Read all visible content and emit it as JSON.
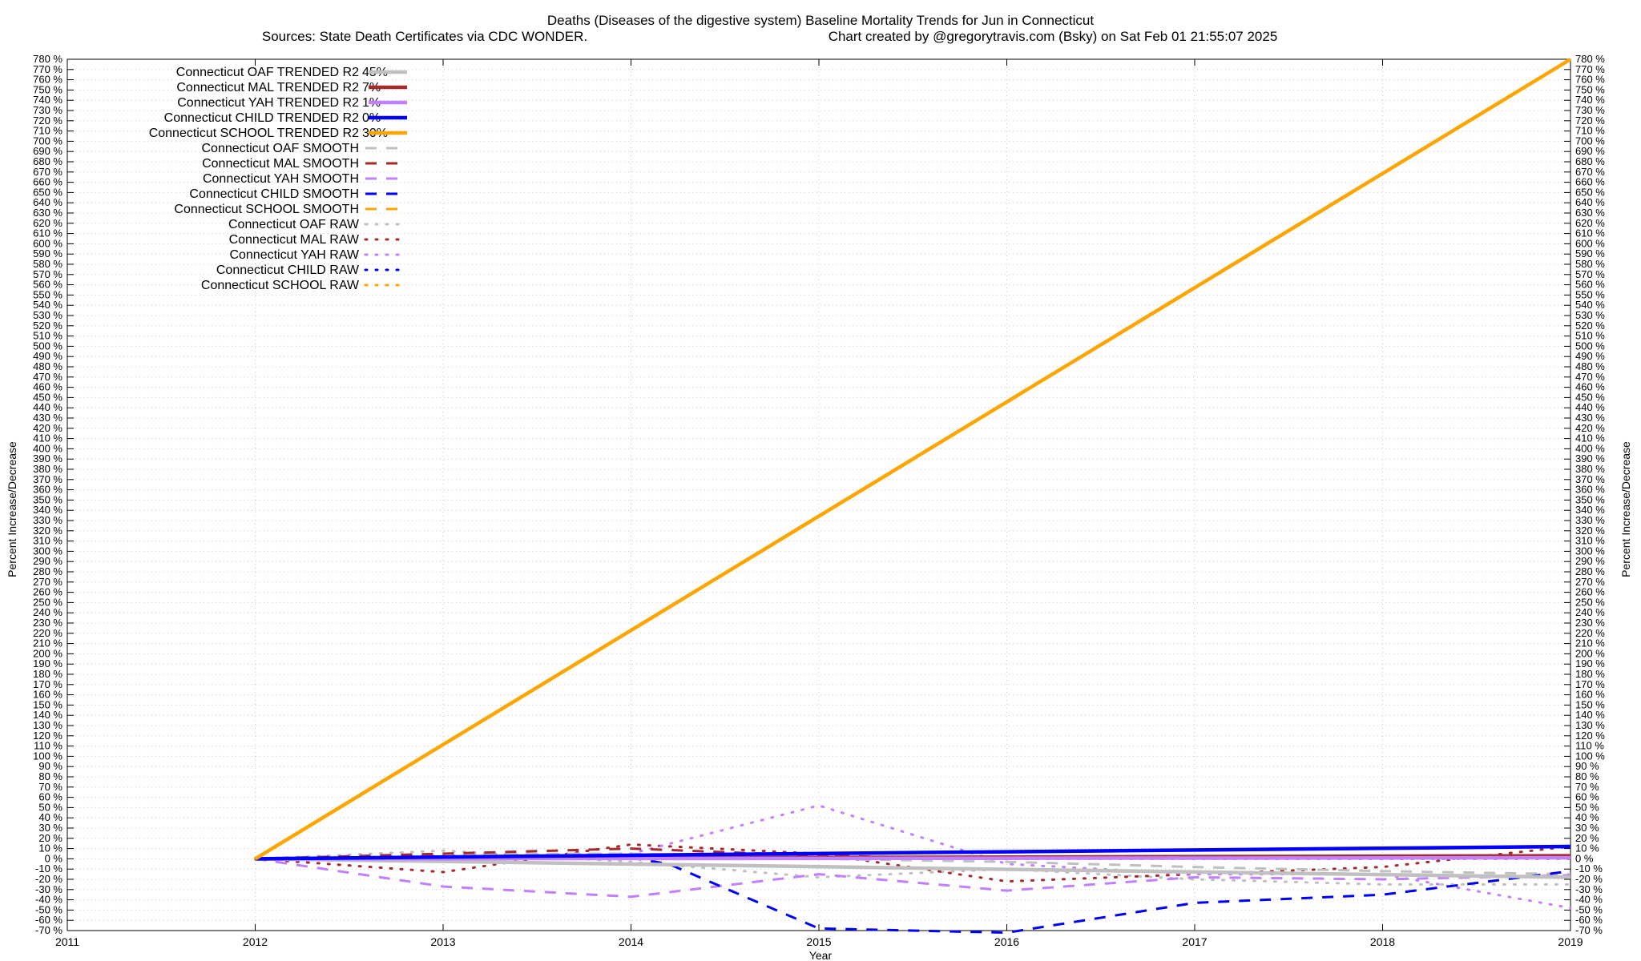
{
  "chart_data": {
    "type": "line",
    "title": "Deaths (Diseases of the digestive system)  Baseline Mortality Trends for Jun in Connecticut",
    "subtitle_left": "Sources: State Death Certificates via CDC WONDER.",
    "subtitle_right": "Chart created by @gregorytravis.com (Bsky) on Sat Feb 01 21:55:07 2025",
    "xlabel": "Year",
    "ylabel": "Percent Increase/Decrease",
    "ylabel_right": "Percent Increase/Decrease",
    "xlim": [
      2011,
      2019
    ],
    "ylim": [
      -70,
      780
    ],
    "y_tick_step": 10,
    "y_tick_suffix": " %",
    "x_ticks": [
      "2011",
      "2012",
      "2013",
      "2014",
      "2015",
      "2016",
      "2017",
      "2018",
      "2019"
    ],
    "grid": true,
    "legend_position": "top-left",
    "colors": {
      "oaf": "#c0c0c0",
      "mal": "#a52a2a",
      "yah": "#c080ff",
      "child": "#0000ff",
      "school": "#ffa500"
    },
    "series": [
      {
        "name": "Connecticut OAF TRENDED R2",
        "r2": "45%",
        "style": "trend",
        "color": "#c0c0c0",
        "x": [
          2012,
          2019
        ],
        "y": [
          0,
          -18
        ]
      },
      {
        "name": "Connecticut MAL TRENDED R2",
        "r2": "7%",
        "style": "trend",
        "color": "#a52a2a",
        "x": [
          2012,
          2019
        ],
        "y": [
          0,
          3
        ]
      },
      {
        "name": "Connecticut YAH TRENDED R2",
        "r2": "1%",
        "style": "trend",
        "color": "#c080ff",
        "x": [
          2012,
          2019
        ],
        "y": [
          0,
          1
        ]
      },
      {
        "name": "Connecticut CHILD TRENDED R2",
        "r2": "0%",
        "style": "trend",
        "color": "#0000ff",
        "x": [
          2012,
          2019
        ],
        "y": [
          0,
          12
        ]
      },
      {
        "name": "Connecticut SCHOOL TRENDED R2",
        "r2": "30%",
        "style": "trend",
        "color": "#ffa500",
        "x": [
          2012,
          2019
        ],
        "y": [
          0,
          780
        ]
      },
      {
        "name": "Connecticut OAF SMOOTH",
        "style": "smooth",
        "color": "#c0c0c0",
        "x": [
          2012,
          2013,
          2014,
          2015,
          2016,
          2017,
          2018,
          2019
        ],
        "y": [
          0,
          5,
          5,
          0,
          -3,
          -8,
          -12,
          -15
        ]
      },
      {
        "name": "Connecticut MAL SMOOTH",
        "style": "smooth",
        "color": "#a52a2a",
        "x": [
          2012,
          2013,
          2014,
          2015,
          2016,
          2017,
          2018,
          2019
        ],
        "y": [
          0,
          5,
          10,
          3,
          0,
          2,
          3,
          3
        ]
      },
      {
        "name": "Connecticut YAH SMOOTH",
        "style": "smooth",
        "color": "#c080ff",
        "x": [
          2012,
          2013,
          2014,
          2015,
          2016,
          2017,
          2018,
          2019
        ],
        "y": [
          0,
          -27,
          -37,
          -15,
          -31,
          -18,
          -20,
          -16
        ]
      },
      {
        "name": "Connecticut CHILD SMOOTH",
        "style": "smooth",
        "color": "#0000ff",
        "x": [
          2012,
          2014,
          2014.2,
          2015,
          2016,
          2017,
          2018,
          2019
        ],
        "y": [
          0,
          1,
          -5,
          -68,
          -72,
          -43,
          -35,
          -12
        ]
      },
      {
        "name": "Connecticut SCHOOL SMOOTH",
        "style": "smooth",
        "color": "#ffa500",
        "x": [
          2012,
          2019
        ],
        "y": [
          0,
          780
        ]
      },
      {
        "name": "Connecticut OAF RAW",
        "style": "raw",
        "color": "#c0c0c0",
        "x": [
          2012,
          2013,
          2014,
          2015,
          2016,
          2017,
          2018,
          2019
        ],
        "y": [
          0,
          8,
          -3,
          -18,
          -10,
          -20,
          -25,
          -25
        ]
      },
      {
        "name": "Connecticut MAL RAW",
        "style": "raw",
        "color": "#a52a2a",
        "x": [
          2012,
          2013,
          2014,
          2015,
          2016,
          2017,
          2018,
          2019
        ],
        "y": [
          0,
          -13,
          14,
          5,
          -22,
          -15,
          -8,
          12
        ]
      },
      {
        "name": "Connecticut YAH RAW",
        "style": "raw",
        "color": "#c080ff",
        "x": [
          2012,
          2013,
          2014,
          2015,
          2016,
          2017,
          2018,
          2019
        ],
        "y": [
          0,
          3,
          5,
          52,
          -5,
          -15,
          -15,
          -48
        ]
      },
      {
        "name": "Connecticut CHILD RAW",
        "style": "raw",
        "color": "#0000ff",
        "x": [
          2012,
          2019
        ],
        "y": [
          0,
          0
        ]
      },
      {
        "name": "Connecticut SCHOOL RAW",
        "style": "raw",
        "color": "#ffa500",
        "x": [
          2012,
          2019
        ],
        "y": [
          0,
          0
        ]
      }
    ]
  }
}
